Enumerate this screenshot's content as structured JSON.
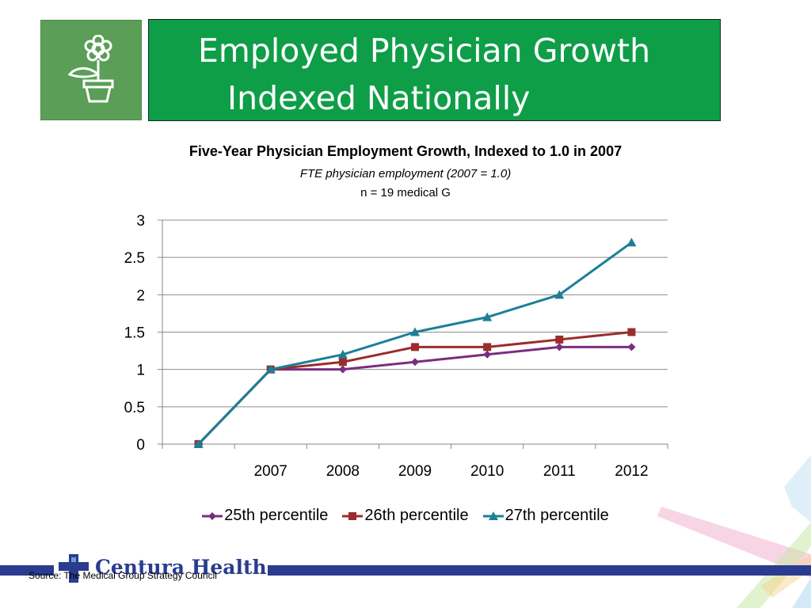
{
  "slide": {
    "title_line1": "Employed Physician Growth",
    "title_line2": "Indexed Nationally",
    "icon": "flower-pot-icon",
    "accent_color": "#0e9e48",
    "icon_box_color": "#5a9e57"
  },
  "chart_data": {
    "type": "line",
    "title": "Five-Year Physician Employment Growth, Indexed to 1.0 in 2007",
    "subtitle": "FTE physician employment (2007 = 1.0)",
    "note": "n = 19 medical G",
    "categories": [
      "",
      "2007",
      "2008",
      "2009",
      "2010",
      "2011",
      "2012"
    ],
    "ylim": [
      0,
      3
    ],
    "yticks": [
      "0",
      "0.5",
      "1",
      "1.5",
      "2",
      "2.5",
      "3"
    ],
    "grid": true,
    "legend_position": "bottom",
    "series": [
      {
        "name": "25th percentile",
        "color": "#7b2d7e",
        "marker": "diamond",
        "values": [
          0,
          1.0,
          1.0,
          1.1,
          1.2,
          1.3,
          1.3
        ]
      },
      {
        "name": "26th percentile",
        "color": "#9b2c2c",
        "marker": "square",
        "values": [
          0,
          1.0,
          1.1,
          1.3,
          1.3,
          1.4,
          1.5
        ]
      },
      {
        "name": "27th percentile",
        "color": "#1e7f96",
        "marker": "triangle",
        "values": [
          0,
          1.0,
          1.2,
          1.5,
          1.7,
          2.0,
          2.7
        ]
      }
    ]
  },
  "footer": {
    "logo_text": "Centura Health",
    "source": "Source: The Medical Group Strategy Council",
    "bar_color": "#2a3c8f"
  }
}
